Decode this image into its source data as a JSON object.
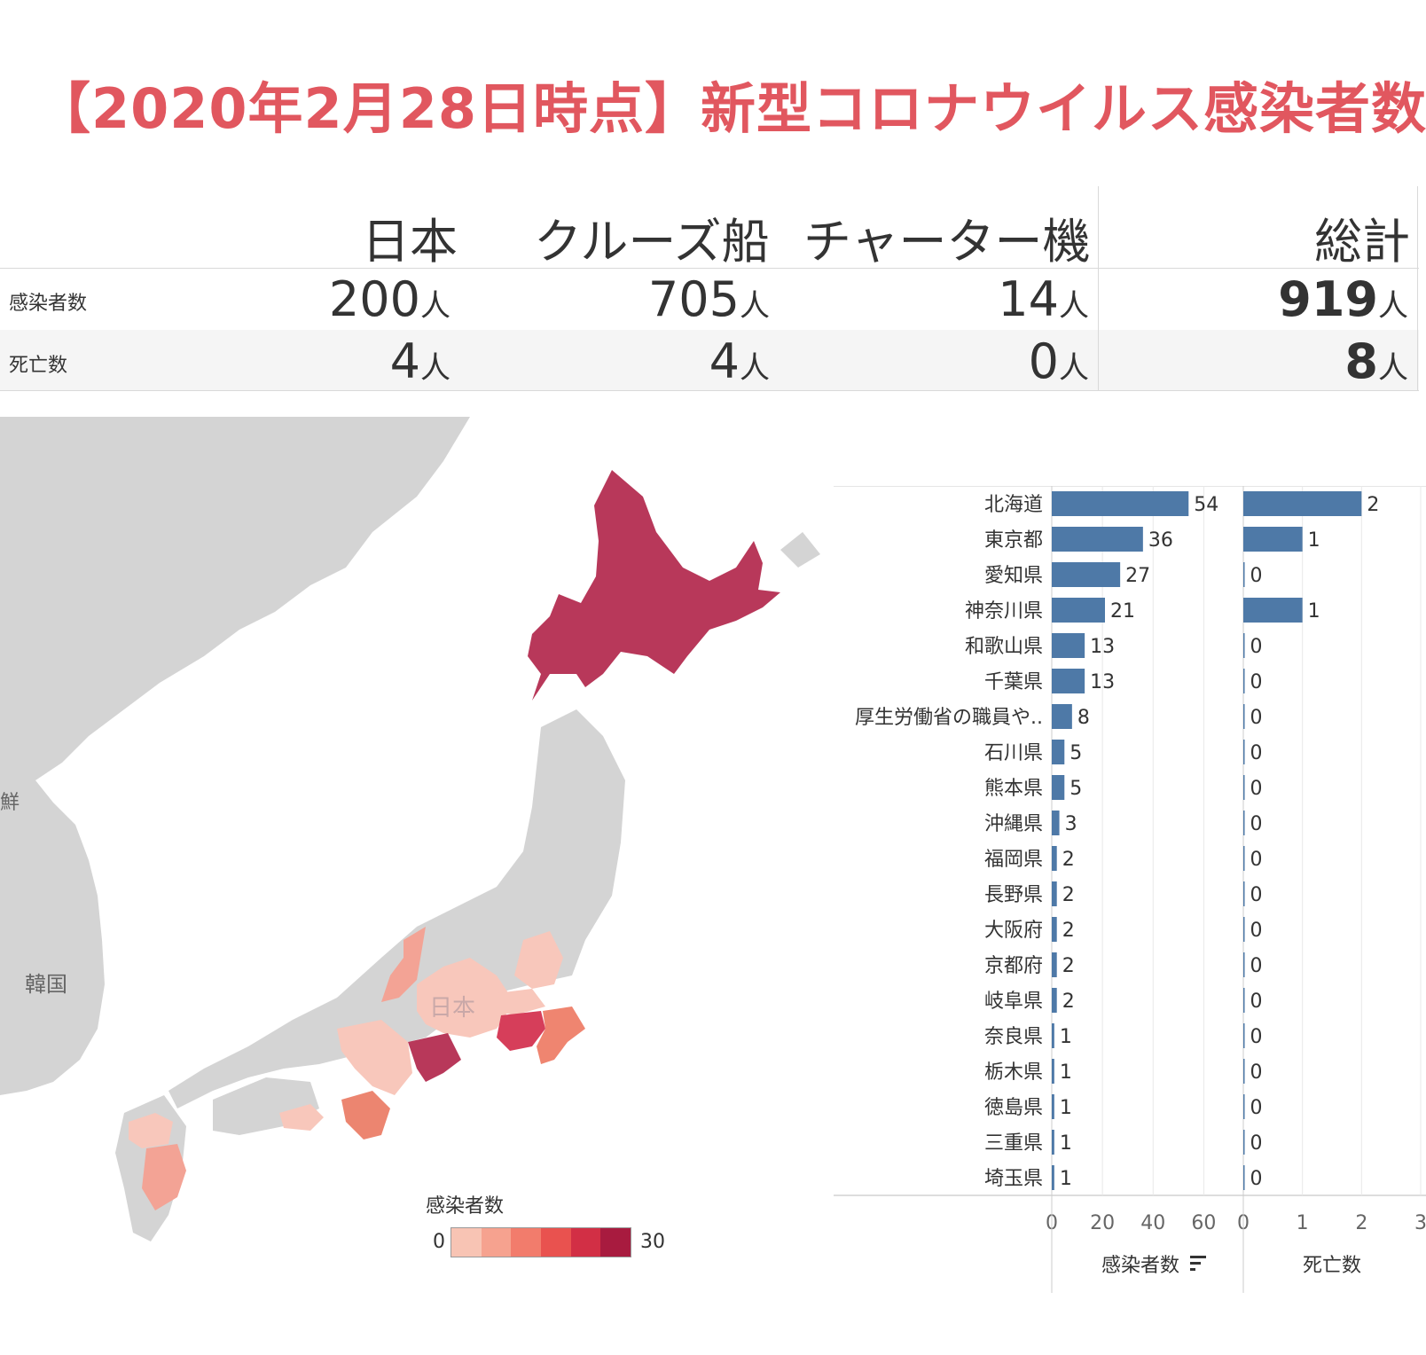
{
  "title": "【2020年2月28日時点】新型コロナウイルス感染者数",
  "summary": {
    "columns": [
      "日本",
      "クルーズ船",
      "チャーター機",
      "総計"
    ],
    "rows": [
      {
        "label": "感染者数",
        "values": [
          "200",
          "705",
          "14",
          "919"
        ]
      },
      {
        "label": "死亡数",
        "values": [
          "4",
          "4",
          "0",
          "8"
        ]
      }
    ],
    "unit": "人"
  },
  "map": {
    "labels": {
      "korea": "韓国",
      "japan": "日本",
      "korea_partial": "鮮"
    },
    "legend_title": "感染者数",
    "legend_min": "0",
    "legend_max": "30",
    "ramp": [
      "#f8c4b4",
      "#f6a28f",
      "#f27c6c",
      "#e9524f",
      "#d22f45",
      "#a81b3f"
    ],
    "land_color": "#d4d4d4",
    "sea_color": "#ffffff",
    "fill_colors": {
      "hokkaido": "#b8385a",
      "tokyo": "#d63e5a",
      "aichi": "#b8385a",
      "kanagawa": "#e46d6a",
      "chiba": "#ef8570",
      "wakayama": "#ec8570",
      "light": "#f8c7bb",
      "mid": "#f3a395"
    }
  },
  "chart_data": [
    {
      "type": "bar",
      "orientation": "horizontal",
      "categories": [
        "北海道",
        "東京都",
        "愛知県",
        "神奈川県",
        "和歌山県",
        "千葉県",
        "厚生労働省の職員や..",
        "石川県",
        "熊本県",
        "沖縄県",
        "福岡県",
        "長野県",
        "大阪府",
        "京都府",
        "岐阜県",
        "奈良県",
        "栃木県",
        "徳島県",
        "三重県",
        "埼玉県"
      ],
      "values": [
        54,
        36,
        27,
        21,
        13,
        13,
        8,
        5,
        5,
        3,
        2,
        2,
        2,
        2,
        2,
        1,
        1,
        1,
        1,
        1
      ],
      "xlabel": "感染者数",
      "xlim": [
        0,
        70
      ],
      "ticks": [
        0,
        20,
        40,
        60
      ],
      "color": "#4e79a7",
      "grid": true
    },
    {
      "type": "bar",
      "orientation": "horizontal",
      "categories": [
        "北海道",
        "東京都",
        "愛知県",
        "神奈川県",
        "和歌山県",
        "千葉県",
        "厚生労働省の職員や..",
        "石川県",
        "熊本県",
        "沖縄県",
        "福岡県",
        "長野県",
        "大阪府",
        "京都府",
        "岐阜県",
        "奈良県",
        "栃木県",
        "徳島県",
        "三重県",
        "埼玉県"
      ],
      "values": [
        2,
        1,
        0,
        1,
        0,
        0,
        0,
        0,
        0,
        0,
        0,
        0,
        0,
        0,
        0,
        0,
        0,
        0,
        0,
        0
      ],
      "xlabel": "死亡数",
      "xlim": [
        0,
        3
      ],
      "ticks": [
        0,
        1,
        2,
        3
      ],
      "color": "#4e79a7",
      "grid": true
    }
  ]
}
